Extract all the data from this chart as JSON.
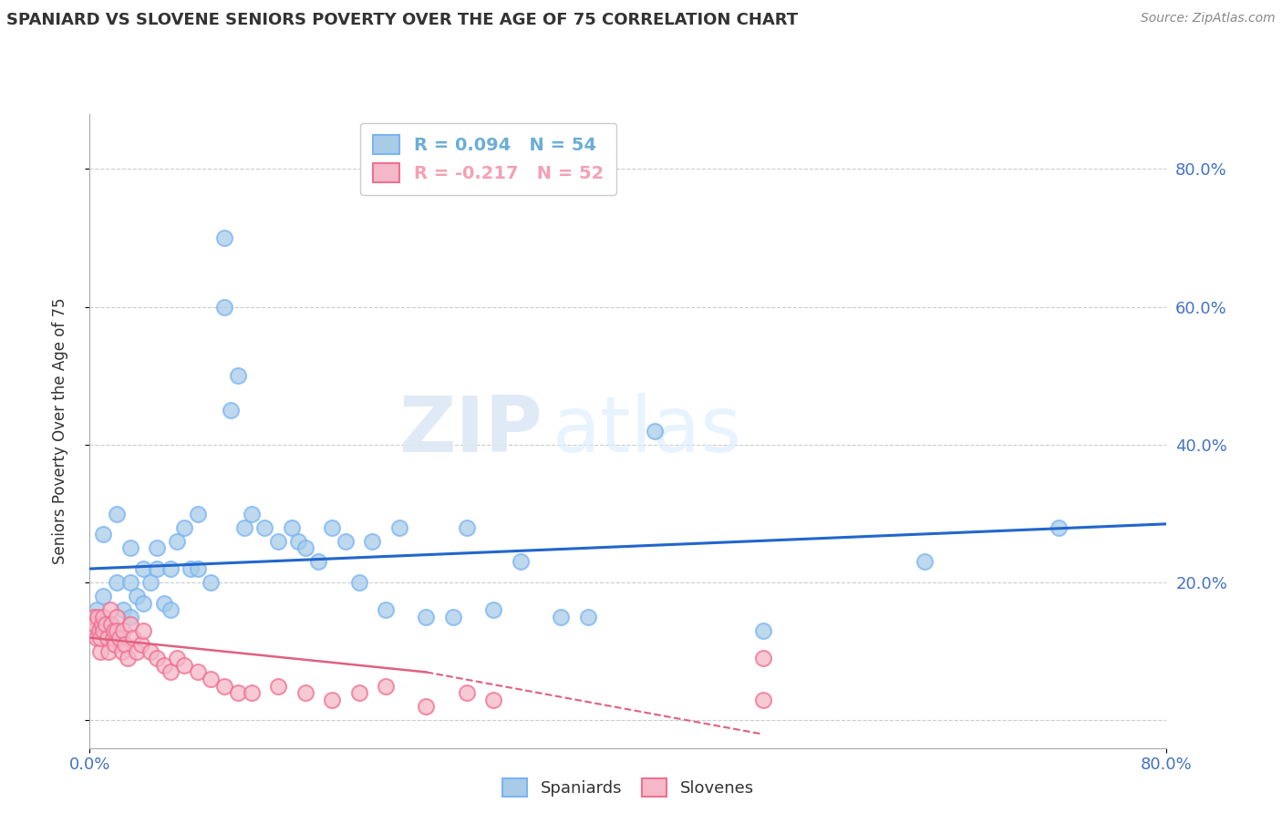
{
  "title": "SPANIARD VS SLOVENE SENIORS POVERTY OVER THE AGE OF 75 CORRELATION CHART",
  "source": "Source: ZipAtlas.com",
  "ylabel": "Seniors Poverty Over the Age of 75",
  "legend_entries": [
    {
      "label": "R = 0.094   N = 54",
      "color": "#6baed6"
    },
    {
      "label": "R = -0.217   N = 52",
      "color": "#f4a0b5"
    }
  ],
  "legend_name_spaniards": "Spaniards",
  "legend_name_slovenes": "Slovenes",
  "spaniard_color": "#a8cce8",
  "slovene_color": "#f4b8c8",
  "spaniard_edge_color": "#7ab4f5",
  "slovene_edge_color": "#f07090",
  "trend_spaniard_color": "#2266cc",
  "trend_slovene_color": "#e06080",
  "watermark_zip": "ZIP",
  "watermark_atlas": "atlas",
  "xlim": [
    0.0,
    0.8
  ],
  "ylim": [
    -0.04,
    0.88
  ],
  "spaniard_x": [
    0.005,
    0.01,
    0.01,
    0.015,
    0.02,
    0.02,
    0.025,
    0.03,
    0.03,
    0.03,
    0.035,
    0.04,
    0.04,
    0.045,
    0.05,
    0.05,
    0.055,
    0.06,
    0.06,
    0.065,
    0.07,
    0.075,
    0.08,
    0.08,
    0.09,
    0.1,
    0.1,
    0.105,
    0.11,
    0.115,
    0.12,
    0.13,
    0.14,
    0.15,
    0.155,
    0.16,
    0.17,
    0.18,
    0.19,
    0.2,
    0.21,
    0.22,
    0.23,
    0.25,
    0.27,
    0.28,
    0.3,
    0.32,
    0.35,
    0.37,
    0.42,
    0.5,
    0.62,
    0.72
  ],
  "spaniard_y": [
    0.16,
    0.27,
    0.18,
    0.14,
    0.3,
    0.2,
    0.16,
    0.25,
    0.2,
    0.15,
    0.18,
    0.22,
    0.17,
    0.2,
    0.22,
    0.25,
    0.17,
    0.22,
    0.16,
    0.26,
    0.28,
    0.22,
    0.3,
    0.22,
    0.2,
    0.7,
    0.6,
    0.45,
    0.5,
    0.28,
    0.3,
    0.28,
    0.26,
    0.28,
    0.26,
    0.25,
    0.23,
    0.28,
    0.26,
    0.2,
    0.26,
    0.16,
    0.28,
    0.15,
    0.15,
    0.28,
    0.16,
    0.23,
    0.15,
    0.15,
    0.42,
    0.13,
    0.23,
    0.28
  ],
  "slovene_x": [
    0.002,
    0.003,
    0.004,
    0.005,
    0.006,
    0.007,
    0.008,
    0.008,
    0.009,
    0.01,
    0.01,
    0.012,
    0.013,
    0.014,
    0.015,
    0.016,
    0.017,
    0.018,
    0.019,
    0.02,
    0.02,
    0.022,
    0.024,
    0.025,
    0.026,
    0.028,
    0.03,
    0.032,
    0.035,
    0.038,
    0.04,
    0.045,
    0.05,
    0.055,
    0.06,
    0.065,
    0.07,
    0.08,
    0.09,
    0.1,
    0.11,
    0.12,
    0.14,
    0.16,
    0.18,
    0.2,
    0.22,
    0.25,
    0.28,
    0.3,
    0.5,
    0.5
  ],
  "slovene_y": [
    0.13,
    0.15,
    0.14,
    0.12,
    0.15,
    0.13,
    0.1,
    0.12,
    0.14,
    0.13,
    0.15,
    0.14,
    0.12,
    0.1,
    0.16,
    0.14,
    0.12,
    0.13,
    0.11,
    0.15,
    0.13,
    0.12,
    0.1,
    0.13,
    0.11,
    0.09,
    0.14,
    0.12,
    0.1,
    0.11,
    0.13,
    0.1,
    0.09,
    0.08,
    0.07,
    0.09,
    0.08,
    0.07,
    0.06,
    0.05,
    0.04,
    0.04,
    0.05,
    0.04,
    0.03,
    0.04,
    0.05,
    0.02,
    0.04,
    0.03,
    0.09,
    0.03
  ]
}
